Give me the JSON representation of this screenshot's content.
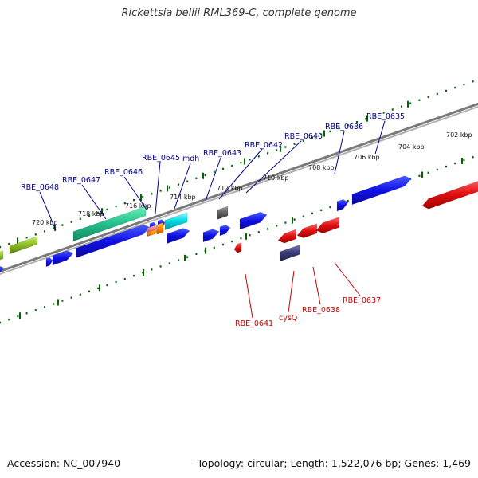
{
  "title": "Rickettsia bellii RML369-C, complete genome",
  "accession": "Accession: NC_007940",
  "summary": "Topology: circular; Length: 1,522,076 bp; Genes: 1,469",
  "colors": {
    "forward_label": "#00008b",
    "reverse_label": "#cc0000",
    "tick": "#006400",
    "backbone": "#7a7a7a"
  },
  "scale": {
    "unit": "kbp",
    "tick_labels": [
      "702 kbp",
      "704 kbp",
      "706 kbp",
      "708 kbp",
      "710 kbp",
      "712 kbp",
      "714 kbp",
      "716 kbp",
      "718 kbp",
      "720 kbp"
    ]
  },
  "forward_labels": [
    "RBE_0648",
    "RBE_0647",
    "RBE_0646",
    "RBE_0645",
    "mdh",
    "RBE_0643",
    "RBE_0642",
    "RBE_0640",
    "RBE_0636",
    "RBE_0635"
  ],
  "reverse_labels": [
    "RBE_0641",
    "cysQ",
    "RBE_0638",
    "RBE_0637"
  ],
  "feature_colors": [
    "#1010e6",
    "#22c08c",
    "#00d8e0",
    "#ff8800",
    "#f08080",
    "#606060",
    "#e01010",
    "#3a3a78",
    "#88bb22"
  ]
}
